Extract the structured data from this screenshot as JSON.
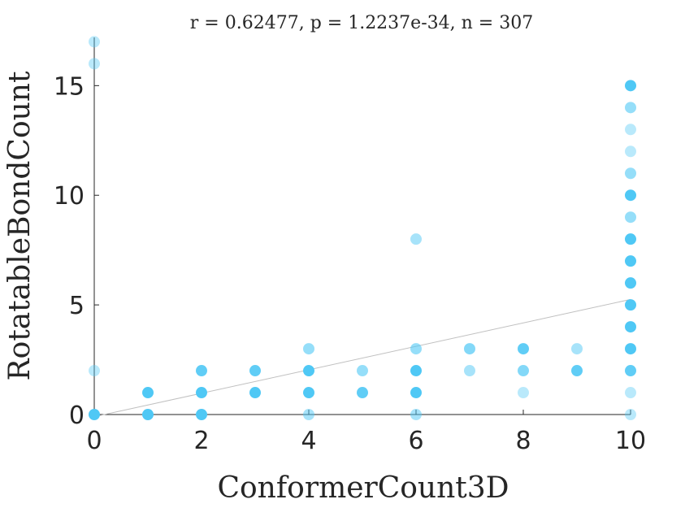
{
  "chart_data": {
    "type": "scatter",
    "title": "r = 0.62477, p = 1.2237e-34, n = 307",
    "xlabel": "ConformerCount3D",
    "ylabel": "RotatableBondCount",
    "xlim": [
      0,
      10
    ],
    "ylim": [
      0,
      17.2
    ],
    "xticks": [
      "0",
      "2",
      "4",
      "6",
      "8",
      "10"
    ],
    "yticks": [
      "0",
      "5",
      "10",
      "15"
    ],
    "grid": false,
    "legend": "none",
    "marker_color": "#4fc8f5",
    "trend_color": "#c0c0c0",
    "trendline": {
      "x": [
        0,
        10
      ],
      "y": [
        -0.1,
        5.25
      ]
    },
    "points": [
      {
        "x": 0,
        "y": 0,
        "a": 1.0
      },
      {
        "x": 0,
        "y": 2,
        "a": 0.4
      },
      {
        "x": 0,
        "y": 16,
        "a": 0.4
      },
      {
        "x": 0,
        "y": 17,
        "a": 0.4
      },
      {
        "x": 1,
        "y": 0,
        "a": 1.0
      },
      {
        "x": 1,
        "y": 1,
        "a": 1.0
      },
      {
        "x": 2,
        "y": 0,
        "a": 1.0
      },
      {
        "x": 2,
        "y": 1,
        "a": 1.0
      },
      {
        "x": 2,
        "y": 2,
        "a": 0.9
      },
      {
        "x": 3,
        "y": 1,
        "a": 1.0
      },
      {
        "x": 3,
        "y": 2,
        "a": 0.9
      },
      {
        "x": 4,
        "y": 0,
        "a": 0.5
      },
      {
        "x": 4,
        "y": 1,
        "a": 1.0
      },
      {
        "x": 4,
        "y": 2,
        "a": 1.0
      },
      {
        "x": 4,
        "y": 3,
        "a": 0.6
      },
      {
        "x": 5,
        "y": 1,
        "a": 0.9
      },
      {
        "x": 5,
        "y": 2,
        "a": 0.6
      },
      {
        "x": 6,
        "y": 0,
        "a": 0.5
      },
      {
        "x": 6,
        "y": 1,
        "a": 1.0
      },
      {
        "x": 6,
        "y": 2,
        "a": 1.0
      },
      {
        "x": 6,
        "y": 3,
        "a": 0.6
      },
      {
        "x": 6,
        "y": 8,
        "a": 0.5
      },
      {
        "x": 7,
        "y": 2,
        "a": 0.5
      },
      {
        "x": 7,
        "y": 3,
        "a": 0.7
      },
      {
        "x": 8,
        "y": 1,
        "a": 0.4
      },
      {
        "x": 8,
        "y": 2,
        "a": 0.7
      },
      {
        "x": 8,
        "y": 3,
        "a": 0.9
      },
      {
        "x": 9,
        "y": 2,
        "a": 0.9
      },
      {
        "x": 9,
        "y": 3,
        "a": 0.5
      },
      {
        "x": 10,
        "y": 0,
        "a": 0.4
      },
      {
        "x": 10,
        "y": 1,
        "a": 0.4
      },
      {
        "x": 10,
        "y": 2,
        "a": 0.9
      },
      {
        "x": 10,
        "y": 3,
        "a": 1.0
      },
      {
        "x": 10,
        "y": 4,
        "a": 1.0
      },
      {
        "x": 10,
        "y": 5,
        "a": 1.0
      },
      {
        "x": 10,
        "y": 6,
        "a": 1.0
      },
      {
        "x": 10,
        "y": 7,
        "a": 1.0
      },
      {
        "x": 10,
        "y": 8,
        "a": 1.0
      },
      {
        "x": 10,
        "y": 9,
        "a": 0.6
      },
      {
        "x": 10,
        "y": 10,
        "a": 1.0
      },
      {
        "x": 10,
        "y": 11,
        "a": 0.6
      },
      {
        "x": 10,
        "y": 12,
        "a": 0.4
      },
      {
        "x": 10,
        "y": 13,
        "a": 0.4
      },
      {
        "x": 10,
        "y": 14,
        "a": 0.6
      },
      {
        "x": 10,
        "y": 15,
        "a": 1.0
      }
    ]
  }
}
